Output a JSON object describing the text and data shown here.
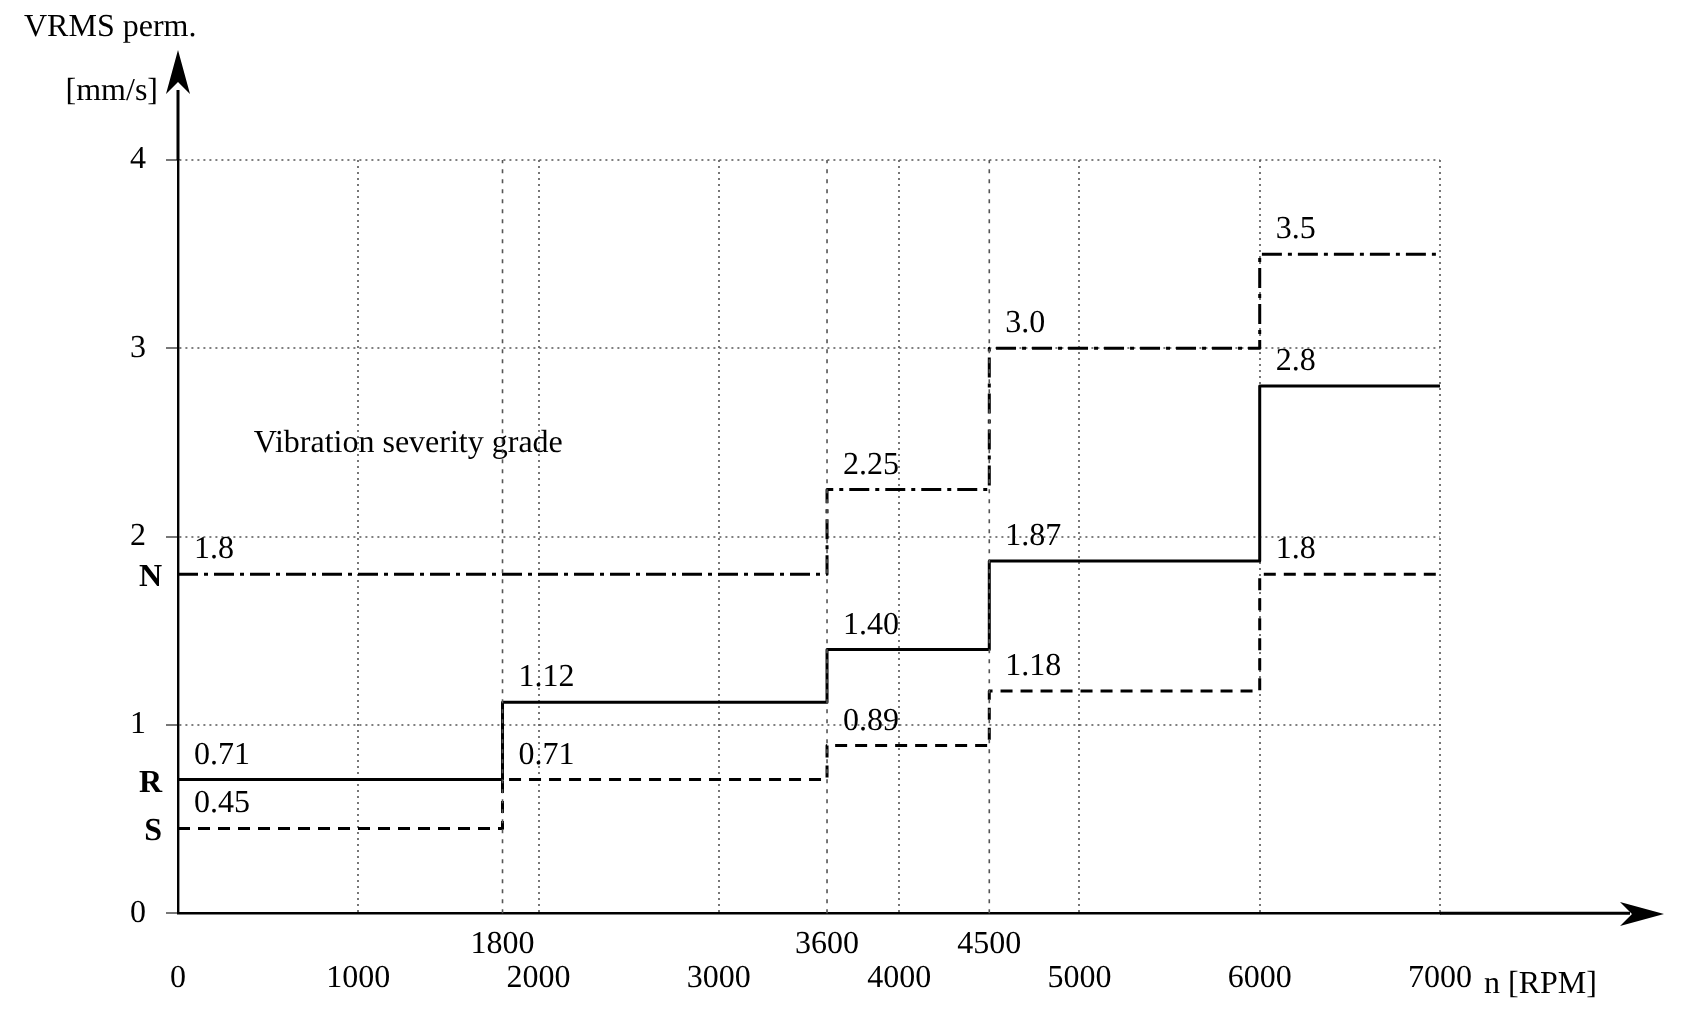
{
  "chart_data": {
    "type": "step",
    "ylabel": "VRMS perm.",
    "xlabel": "n [RPM]",
    "annotations": [
      "[mm/s]",
      "Vibration severity grade"
    ],
    "xlim": [
      0,
      7000
    ],
    "ylim": [
      0,
      4
    ],
    "xticks": [
      0,
      1000,
      2000,
      3000,
      4000,
      5000,
      6000,
      7000
    ],
    "ref_lines": [
      {
        "axis": "x",
        "value": 1800,
        "label": "1800",
        "line_style": "dotted",
        "color": "#555555"
      },
      {
        "axis": "x",
        "value": 3600,
        "label": "3600",
        "line_style": "dotted",
        "color": "#555555"
      },
      {
        "axis": "x",
        "value": 4500,
        "label": "4500",
        "line_style": "dotted",
        "color": "#555555"
      }
    ],
    "yticks": [
      0,
      1,
      2,
      3,
      4
    ],
    "grid": true,
    "legend": false,
    "marker": "none",
    "series": [
      {
        "name": "N",
        "color": "#000000",
        "line_style": "dashdot",
        "x": [
          0,
          3600,
          4500,
          6000,
          7000
        ],
        "values": [
          1.8,
          2.25,
          3.0,
          3.5,
          3.5
        ],
        "value_labels": [
          "1.8",
          "2.25",
          "3.0",
          "3.5",
          null
        ]
      },
      {
        "name": "R",
        "color": "#000000",
        "line_style": "solid",
        "x": [
          0,
          1800,
          3600,
          4500,
          6000,
          7000
        ],
        "values": [
          0.71,
          1.12,
          1.4,
          1.87,
          2.8,
          2.8
        ],
        "value_labels": [
          "0.71",
          "1.12",
          "1.40",
          "1.87",
          "2.8",
          null
        ]
      },
      {
        "name": "S",
        "color": "#000000",
        "line_style": "dashed",
        "x": [
          0,
          1800,
          3600,
          4500,
          6000,
          7000
        ],
        "values": [
          0.45,
          0.71,
          0.89,
          1.18,
          1.8,
          1.8
        ],
        "value_labels": [
          "0.45",
          "0.71",
          "0.89",
          "1.18",
          "1.8",
          null
        ]
      }
    ]
  }
}
